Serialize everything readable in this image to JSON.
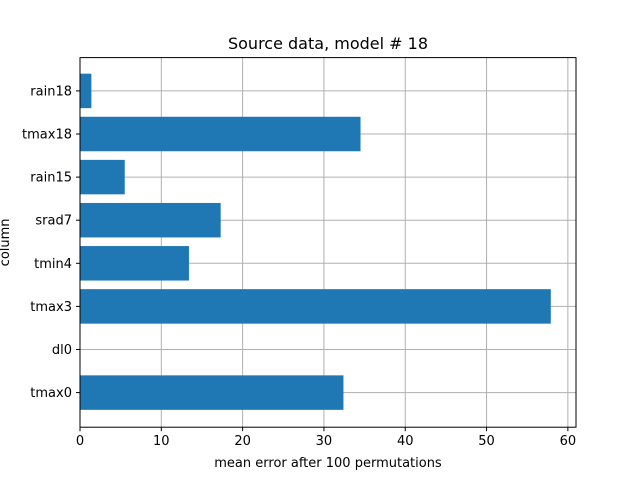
{
  "chart_data": {
    "type": "bar",
    "orientation": "horizontal",
    "title": "Source data, model # 18",
    "xlabel": "mean error after 100 permutations",
    "ylabel": "column",
    "categories": [
      "tmax0",
      "dl0",
      "tmax3",
      "tmin4",
      "srad7",
      "rain15",
      "tmax18",
      "rain18"
    ],
    "values": [
      32.4,
      0.0,
      57.9,
      13.4,
      17.3,
      5.5,
      34.5,
      1.4
    ],
    "xlim": [
      0,
      61
    ],
    "xticks": [
      0,
      10,
      20,
      30,
      40,
      50,
      60
    ],
    "grid": true,
    "bar_color": "#1f77b4",
    "grid_color": "#b0b0b0"
  }
}
